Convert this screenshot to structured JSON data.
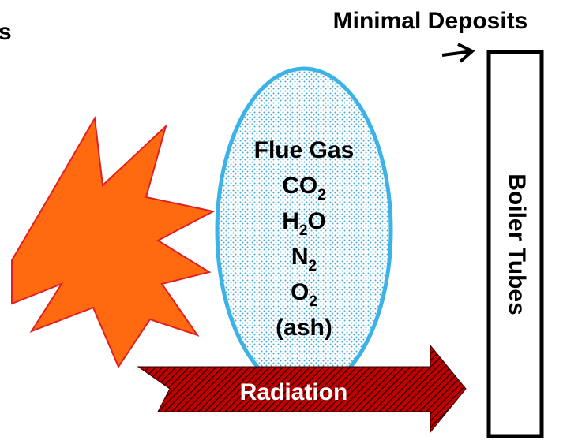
{
  "heading_fragment": "s",
  "deposit_label": "Minimal Deposits",
  "flue_gas": {
    "title": "Flue Gas",
    "species": [
      {
        "base": "CO",
        "sub": "2",
        "rest": ""
      },
      {
        "base": "H",
        "sub": "2",
        "rest": "O"
      },
      {
        "base": "N",
        "sub": "2",
        "rest": ""
      },
      {
        "base": "O",
        "sub": "2",
        "rest": ""
      }
    ],
    "ash": "(ash)"
  },
  "radiation": "Radiation",
  "tubes": "Boiler Tubes"
}
